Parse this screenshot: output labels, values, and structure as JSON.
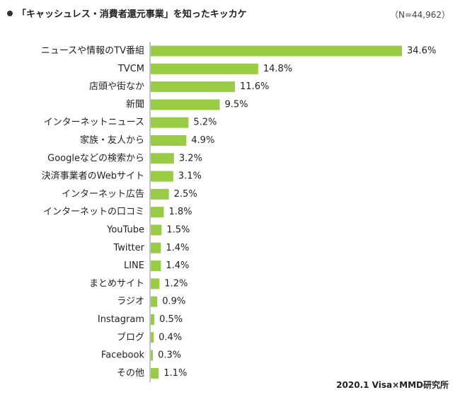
{
  "header": {
    "title": "「キャッシュレス・消費者還元事業」を知ったキッカケ",
    "sample_size": "（N=44,962）"
  },
  "footer": {
    "source": "2020.1 Visa×MMD研究所"
  },
  "colors": {
    "bar": "#99cc44",
    "axis": "#888888",
    "text": "#222222"
  },
  "chart_data": {
    "type": "bar",
    "orientation": "horizontal",
    "categories": [
      "ニュースや情報のTV番組",
      "TVCM",
      "店頭や街なか",
      "新聞",
      "インターネットニュース",
      "家族・友人から",
      "Googleなどの検索から",
      "決済事業者のWebサイト",
      "インターネット広告",
      "インターネットの口コミ",
      "YouTube",
      "Twitter",
      "LINE",
      "まとめサイト",
      "ラジオ",
      "Instagram",
      "ブログ",
      "Facebook",
      "その他"
    ],
    "values": [
      34.6,
      14.8,
      11.6,
      9.5,
      5.2,
      4.9,
      3.2,
      3.1,
      2.5,
      1.8,
      1.5,
      1.4,
      1.4,
      1.2,
      0.9,
      0.5,
      0.4,
      0.3,
      1.1
    ],
    "value_suffix": "%",
    "xlim": [
      0,
      34.6
    ],
    "grid": false,
    "legend": "none"
  }
}
